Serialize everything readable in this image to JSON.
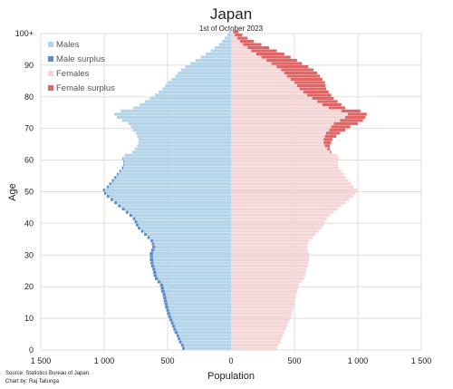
{
  "chart_data": {
    "type": "bar",
    "orientation": "horizontal-population-pyramid",
    "title": "Japan",
    "subtitle": "1st of October 2023",
    "xlabel": "Population",
    "ylabel": "Age",
    "xlim": [
      -1500,
      1500
    ],
    "ylim": [
      0,
      100
    ],
    "x_ticks": [
      -1500,
      -1000,
      -500,
      0,
      500,
      1000,
      1500
    ],
    "x_tick_labels": [
      "1 500",
      "1 000",
      "500",
      "0",
      "500",
      "1 000",
      "1 500"
    ],
    "y_ticks": [
      0,
      10,
      20,
      30,
      40,
      50,
      60,
      70,
      80,
      90,
      100
    ],
    "y_tick_labels": [
      "0",
      "10",
      "20",
      "30",
      "40",
      "50",
      "60",
      "70",
      "80",
      "90",
      "100+"
    ],
    "grid": true,
    "legend_position": "top-left",
    "legend": [
      {
        "name": "Males",
        "color": "#b4d4ea"
      },
      {
        "name": "Male surplus",
        "color": "#5b8cc6"
      },
      {
        "name": "Females",
        "color": "#f3d6d6"
      },
      {
        "name": "Female surplus",
        "color": "#e06666"
      }
    ],
    "ages": [
      0,
      1,
      2,
      3,
      4,
      5,
      6,
      7,
      8,
      9,
      10,
      11,
      12,
      13,
      14,
      15,
      16,
      17,
      18,
      19,
      20,
      21,
      22,
      23,
      24,
      25,
      26,
      27,
      28,
      29,
      30,
      31,
      32,
      33,
      34,
      35,
      36,
      37,
      38,
      39,
      40,
      41,
      42,
      43,
      44,
      45,
      46,
      47,
      48,
      49,
      50,
      51,
      52,
      53,
      54,
      55,
      56,
      57,
      58,
      59,
      60,
      61,
      62,
      63,
      64,
      65,
      66,
      67,
      68,
      69,
      70,
      71,
      72,
      73,
      74,
      75,
      76,
      77,
      78,
      79,
      80,
      81,
      82,
      83,
      84,
      85,
      86,
      87,
      88,
      89,
      90,
      91,
      92,
      93,
      94,
      95,
      96,
      97,
      98,
      99,
      100
    ],
    "series": [
      {
        "name": "Males",
        "values": [
          385,
          395,
          410,
          420,
          430,
          445,
          455,
          465,
          475,
          485,
          495,
          505,
          510,
          520,
          525,
          530,
          535,
          540,
          550,
          555,
          560,
          580,
          600,
          610,
          615,
          620,
          630,
          635,
          640,
          640,
          640,
          630,
          620,
          625,
          635,
          660,
          685,
          710,
          735,
          750,
          760,
          775,
          800,
          830,
          860,
          890,
          920,
          950,
          980,
          1000,
          1010,
          980,
          960,
          940,
          920,
          900,
          880,
          860,
          850,
          850,
          855,
          840,
          780,
          760,
          740,
          730,
          730,
          740,
          750,
          775,
          790,
          810,
          860,
          900,
          920,
          870,
          770,
          720,
          680,
          640,
          600,
          570,
          540,
          520,
          500,
          470,
          440,
          420,
          395,
          360,
          320,
          280,
          240,
          200,
          160,
          130,
          95,
          70,
          50,
          30,
          18
        ]
      },
      {
        "name": "Females",
        "values": [
          365,
          375,
          390,
          400,
          410,
          420,
          432,
          442,
          452,
          462,
          472,
          480,
          487,
          495,
          500,
          505,
          510,
          515,
          522,
          528,
          535,
          555,
          575,
          585,
          590,
          595,
          605,
          610,
          613,
          615,
          615,
          605,
          598,
          605,
          615,
          640,
          665,
          690,
          715,
          730,
          740,
          755,
          780,
          810,
          840,
          870,
          900,
          930,
          960,
          985,
          995,
          965,
          945,
          925,
          905,
          890,
          870,
          850,
          845,
          845,
          850,
          840,
          790,
          780,
          780,
          790,
          800,
          830,
          860,
          900,
          940,
          1000,
          1040,
          1060,
          1070,
          1020,
          900,
          870,
          840,
          810,
          790,
          770,
          750,
          745,
          740,
          720,
          700,
          680,
          650,
          610,
          560,
          520,
          470,
          420,
          360,
          300,
          240,
          180,
          130,
          90,
          60
        ]
      }
    ]
  },
  "source_text": "Source: Statistics Bureau of Japan.",
  "credit_text": "Chart by: Raj Tallunga"
}
